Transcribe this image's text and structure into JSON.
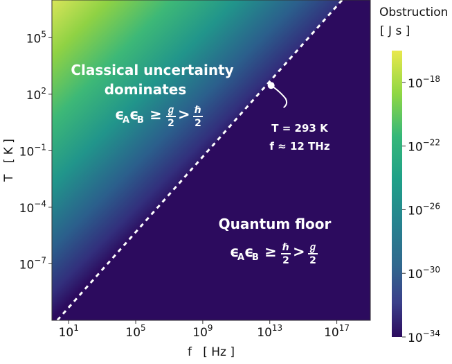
{
  "chart_data": {
    "type": "heatmap",
    "xlabel": "f   [ Hz ]",
    "ylabel": "T   [ K ]",
    "x_scale": "log",
    "y_scale": "log",
    "x_range": [
      1.0,
      1e+19
    ],
    "y_range": [
      1e-10,
      10000000.0
    ],
    "x_ticks": [
      {
        "value": 10.0,
        "base": "10",
        "exp": "1"
      },
      {
        "value": 100000.0,
        "base": "10",
        "exp": "5"
      },
      {
        "value": 1000000000.0,
        "base": "10",
        "exp": "9"
      },
      {
        "value": 10000000000000.0,
        "base": "10",
        "exp": "13"
      },
      {
        "value": 1e+17,
        "base": "10",
        "exp": "17"
      }
    ],
    "y_ticks": [
      {
        "value": 100000.0,
        "base": "10",
        "exp": "5"
      },
      {
        "value": 100.0,
        "base": "10",
        "exp": "2"
      },
      {
        "value": 0.1,
        "base": "10",
        "exp": "−1"
      },
      {
        "value": 0.0001,
        "base": "10",
        "exp": "−4"
      },
      {
        "value": 1e-07,
        "base": "10",
        "exp": "−7"
      }
    ],
    "colorbar": {
      "title_line1": "Obstruction",
      "title_line2": "[ J s ]",
      "scale": "log",
      "range": [
        1e-34,
        1e-16
      ],
      "colormap": "viridis",
      "ticks": [
        {
          "value": 1e-18,
          "base": "10",
          "exp": "−18"
        },
        {
          "value": 1e-22,
          "base": "10",
          "exp": "−22"
        },
        {
          "value": 1e-26,
          "base": "10",
          "exp": "−26"
        },
        {
          "value": 1e-30,
          "base": "10",
          "exp": "−30"
        },
        {
          "value": 1e-34,
          "base": "10",
          "exp": "−34"
        }
      ]
    },
    "boundary_line": {
      "style": "dashed",
      "color": "#ffffff",
      "relation": "k T = h f"
    },
    "marked_point": {
      "x": 12000000000000.0,
      "y": 293,
      "label_line1": "T = 293 K",
      "label_line2": "f ≈ 12 THz"
    },
    "regions": [
      {
        "title_line1": "Classical uncertainty",
        "title_line2": "dominates",
        "formula": {
          "eps": "ϵ",
          "subA": "A",
          "subB": "B",
          "geq": "≥",
          "gt": ">",
          "lhs_num": "ℊ",
          "rhs_num": "ℏ",
          "den": "2"
        }
      },
      {
        "title_line1": "Quantum floor",
        "formula": {
          "eps": "ϵ",
          "subA": "A",
          "subB": "B",
          "geq": "≥",
          "gt": ">",
          "lhs_num": "ℏ",
          "rhs_num": "ℊ",
          "den": "2"
        }
      }
    ]
  }
}
